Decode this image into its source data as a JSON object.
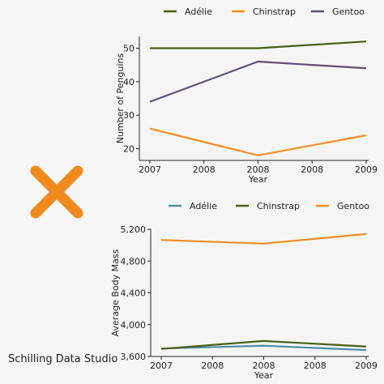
{
  "brand": "Schilling Data Studio",
  "mark_icon": "x-mark-icon",
  "colors": {
    "adelie_top": "#4a5e16",
    "chinstrap_top": "#ee8f25",
    "gentoo_top": "#5f4f74",
    "adelie_bottom": "#4d8fa8",
    "chinstrap_bottom": "#4a5e16",
    "gentoo_bottom": "#ee8f25",
    "x_mark": "#f08a1d"
  },
  "chart_data": [
    {
      "type": "line",
      "title": "",
      "xlabel": "Year",
      "ylabel": "Number of Penguins",
      "x_tick_labels": [
        "2007",
        "2008",
        "2008",
        "2008",
        "2009"
      ],
      "x": [
        2007,
        2008,
        2009
      ],
      "xlim": [
        2007,
        2009
      ],
      "ylim": [
        16.5,
        53.5
      ],
      "y_ticks": [
        "20",
        "30",
        "40",
        "50"
      ],
      "legend_position": "top",
      "grid": false,
      "series": [
        {
          "name": "Adélie",
          "color": "#4a5e16",
          "values": [
            50,
            50,
            52
          ]
        },
        {
          "name": "Chinstrap",
          "color": "#ee8f25",
          "values": [
            26,
            18,
            24
          ]
        },
        {
          "name": "Gentoo",
          "color": "#5f4f74",
          "values": [
            34,
            46,
            44
          ]
        }
      ]
    },
    {
      "type": "line",
      "title": "",
      "xlabel": "Year",
      "ylabel": "Average Body Mass",
      "x_tick_labels": [
        "2007",
        "2008",
        "2008",
        "2008",
        "2009"
      ],
      "x": [
        2007,
        2008,
        2009
      ],
      "xlim": [
        2007,
        2009
      ],
      "ylim": [
        3600,
        5200
      ],
      "y_ticks": [
        "3,600",
        "4,000",
        "4,400",
        "4,800",
        "5,200"
      ],
      "legend_position": "top",
      "grid": false,
      "series": [
        {
          "name": "Adélie",
          "color": "#4d8fa8",
          "values": [
            3700,
            3735,
            3680
          ]
        },
        {
          "name": "Chinstrap",
          "color": "#4a5e16",
          "values": [
            3695,
            3795,
            3725
          ]
        },
        {
          "name": "Gentoo",
          "color": "#ee8f25",
          "values": [
            5065,
            5020,
            5140
          ]
        }
      ]
    }
  ]
}
